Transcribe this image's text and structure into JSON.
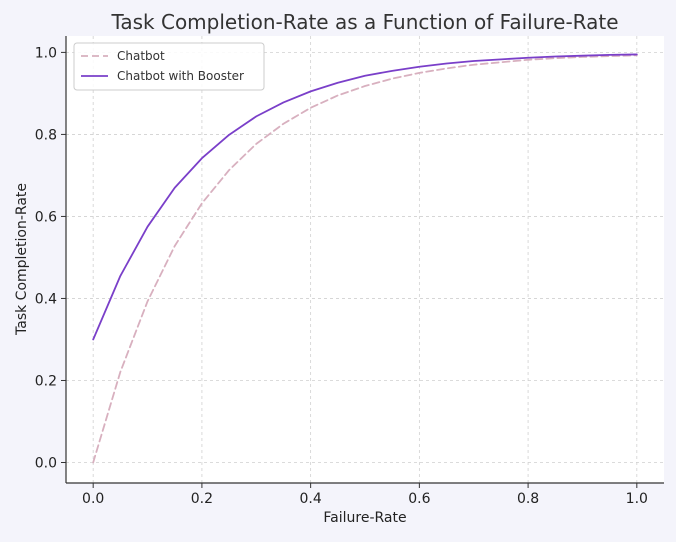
{
  "chart_data": {
    "type": "line",
    "title": "Task Completion-Rate as a Function of Failure-Rate",
    "xlabel": "Failure-Rate",
    "ylabel": "Task Completion-Rate",
    "xlim": [
      -0.05,
      1.05
    ],
    "ylim": [
      -0.05,
      1.04
    ],
    "xticks": [
      0.0,
      0.2,
      0.4,
      0.6,
      0.8,
      1.0
    ],
    "xtick_labels": [
      "0.0",
      "0.2",
      "0.4",
      "0.6",
      "0.8",
      "1.0"
    ],
    "yticks": [
      0.0,
      0.2,
      0.4,
      0.6,
      0.8,
      1.0
    ],
    "ytick_labels": [
      "0.0",
      "0.2",
      "0.4",
      "0.6",
      "0.8",
      "1.0"
    ],
    "grid": true,
    "legend_position": "upper-left",
    "x": [
      0.0,
      0.05,
      0.1,
      0.15,
      0.2,
      0.25,
      0.3,
      0.35,
      0.4,
      0.45,
      0.5,
      0.55,
      0.6,
      0.65,
      0.7,
      0.75,
      0.8,
      0.85,
      0.9,
      0.95,
      1.0
    ],
    "series": [
      {
        "name": "Chatbot",
        "color": "#d8b0bf",
        "style": "dashed",
        "values": [
          0.0,
          0.221,
          0.393,
          0.528,
          0.632,
          0.713,
          0.777,
          0.826,
          0.865,
          0.895,
          0.918,
          0.936,
          0.95,
          0.961,
          0.97,
          0.976,
          0.982,
          0.986,
          0.989,
          0.991,
          0.993
        ]
      },
      {
        "name": "Chatbot with Booster",
        "color": "#7a3fc9",
        "style": "solid",
        "values": [
          0.3,
          0.455,
          0.575,
          0.67,
          0.742,
          0.799,
          0.844,
          0.878,
          0.905,
          0.926,
          0.943,
          0.955,
          0.965,
          0.973,
          0.979,
          0.983,
          0.987,
          0.99,
          0.992,
          0.994,
          0.995
        ]
      }
    ]
  }
}
